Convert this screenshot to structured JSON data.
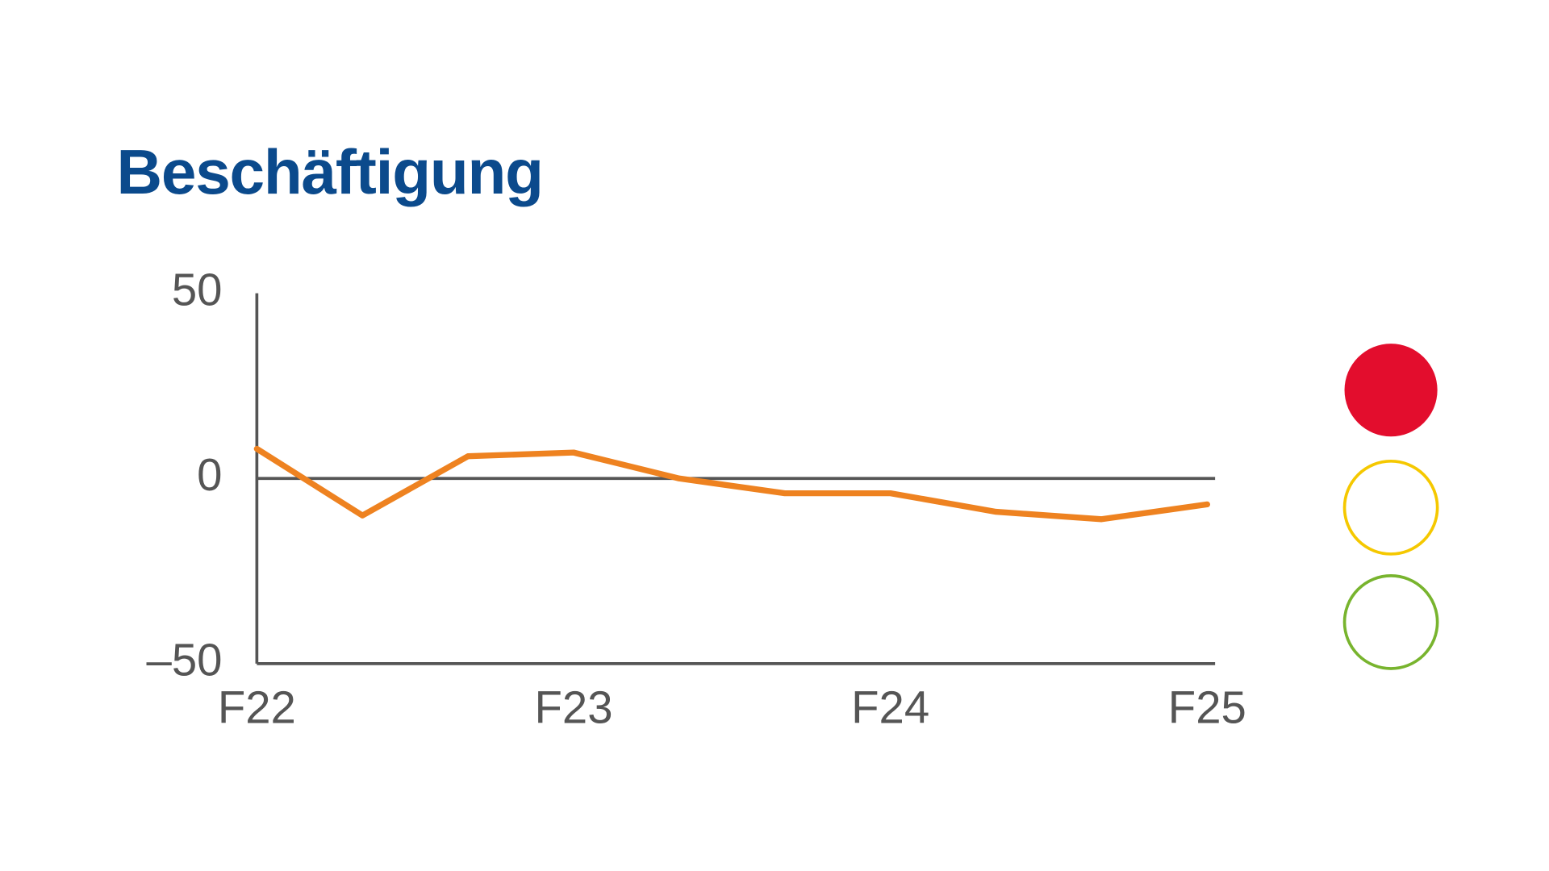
{
  "chart_data": {
    "type": "line",
    "title": "Beschäftigung",
    "categories": [
      "F22",
      null,
      null,
      "F23",
      null,
      null,
      "F24",
      null,
      null,
      "F25"
    ],
    "series": [
      {
        "name": null,
        "color": "#ee8220",
        "values": [
          8,
          -10,
          6,
          7,
          0,
          -4,
          -4,
          -9,
          -11,
          -7
        ]
      }
    ],
    "ylim": [
      -50,
      50
    ],
    "yticks": [
      {
        "value": -50,
        "label": "–50"
      },
      0,
      50
    ],
    "grid": false
  }
}
